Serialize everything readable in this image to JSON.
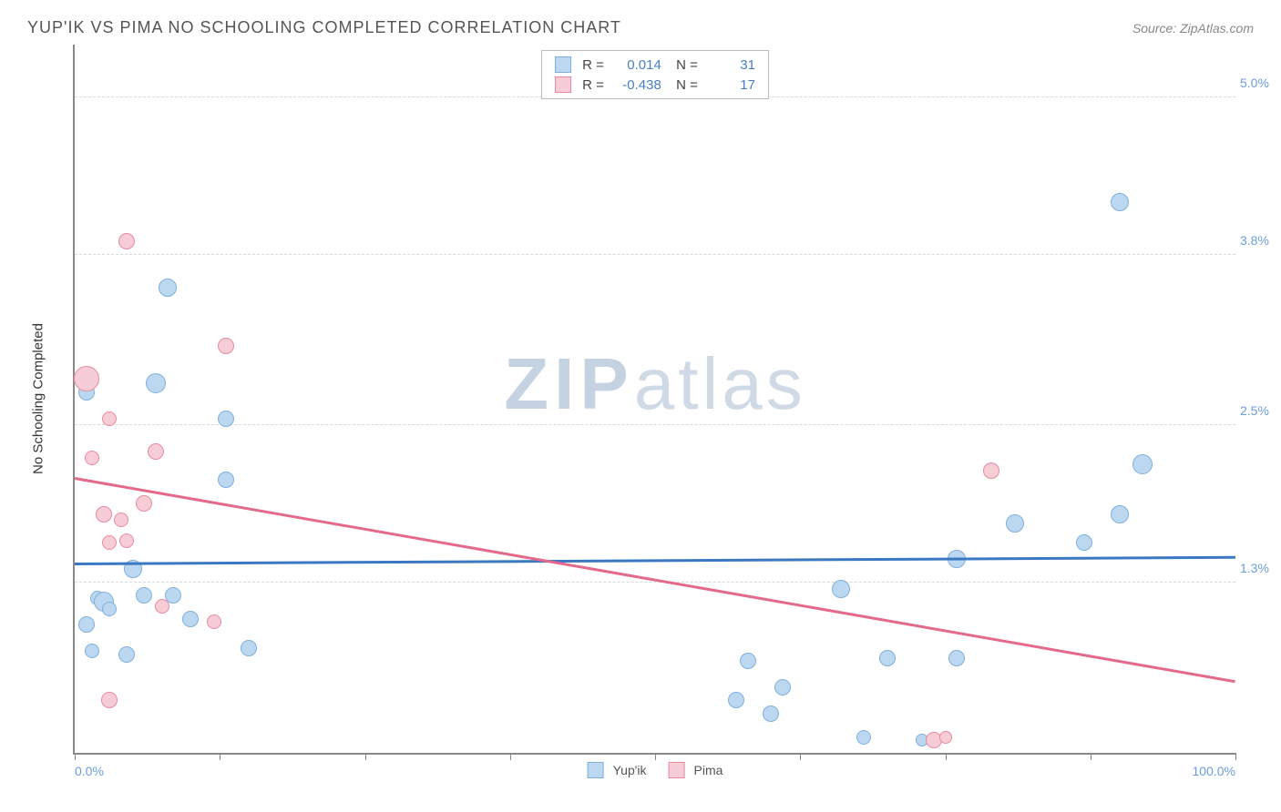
{
  "title": "YUP'IK VS PIMA NO SCHOOLING COMPLETED CORRELATION CHART",
  "source_label": "Source: ZipAtlas.com",
  "y_axis_title": "No Schooling Completed",
  "watermark": {
    "bold": "ZIP",
    "light": "atlas"
  },
  "chart": {
    "type": "scatter",
    "xlim": [
      0,
      100
    ],
    "ylim": [
      0,
      5.4
    ],
    "x_ticks": [
      0,
      12.5,
      25,
      37.5,
      50,
      62.5,
      75,
      87.5,
      100
    ],
    "x_tick_labels": {
      "0": "0.0%",
      "100": "100.0%"
    },
    "y_grid": [
      1.3,
      2.5,
      3.8,
      5.0
    ],
    "y_tick_labels": [
      "1.3%",
      "2.5%",
      "3.8%",
      "5.0%"
    ],
    "background_color": "#ffffff",
    "grid_color": "#d8d8d8",
    "axis_color": "#888888",
    "label_color": "#6a9ddc",
    "series": [
      {
        "name": "Yup'ik",
        "color_fill": "#bcd7f0",
        "color_stroke": "#7fb0dd",
        "trend_color": "#3a78c2",
        "R": "0.014",
        "N": "31",
        "trend": {
          "y_at_x0": 1.45,
          "y_at_x100": 1.5
        },
        "points": [
          {
            "x": 1,
            "y": 2.75,
            "r": 9
          },
          {
            "x": 8,
            "y": 3.55,
            "r": 10
          },
          {
            "x": 7,
            "y": 2.82,
            "r": 11
          },
          {
            "x": 13,
            "y": 2.55,
            "r": 9
          },
          {
            "x": 13,
            "y": 2.08,
            "r": 9
          },
          {
            "x": 5,
            "y": 1.4,
            "r": 10
          },
          {
            "x": 2,
            "y": 1.18,
            "r": 8
          },
          {
            "x": 2.5,
            "y": 1.15,
            "r": 11
          },
          {
            "x": 3,
            "y": 1.1,
            "r": 8
          },
          {
            "x": 6,
            "y": 1.2,
            "r": 9
          },
          {
            "x": 8.5,
            "y": 1.2,
            "r": 9
          },
          {
            "x": 10,
            "y": 1.02,
            "r": 9
          },
          {
            "x": 1,
            "y": 0.98,
            "r": 9
          },
          {
            "x": 1.5,
            "y": 0.78,
            "r": 8
          },
          {
            "x": 4.5,
            "y": 0.75,
            "r": 9
          },
          {
            "x": 15,
            "y": 0.8,
            "r": 9
          },
          {
            "x": 58,
            "y": 0.7,
            "r": 9
          },
          {
            "x": 57,
            "y": 0.4,
            "r": 9
          },
          {
            "x": 61,
            "y": 0.5,
            "r": 9
          },
          {
            "x": 60,
            "y": 0.3,
            "r": 9
          },
          {
            "x": 66,
            "y": 1.25,
            "r": 10
          },
          {
            "x": 70,
            "y": 0.72,
            "r": 9
          },
          {
            "x": 68,
            "y": 0.12,
            "r": 8
          },
          {
            "x": 76,
            "y": 0.72,
            "r": 9
          },
          {
            "x": 76,
            "y": 1.48,
            "r": 10
          },
          {
            "x": 81,
            "y": 1.75,
            "r": 10
          },
          {
            "x": 90,
            "y": 1.82,
            "r": 10
          },
          {
            "x": 87,
            "y": 1.6,
            "r": 9
          },
          {
            "x": 92,
            "y": 2.2,
            "r": 11
          },
          {
            "x": 90,
            "y": 4.2,
            "r": 10
          },
          {
            "x": 73,
            "y": 0.1,
            "r": 7
          }
        ]
      },
      {
        "name": "Pima",
        "color_fill": "#f6cdd6",
        "color_stroke": "#e88aa0",
        "trend_color": "#e46a8b",
        "R": "-0.438",
        "N": "17",
        "trend": {
          "y_at_x0": 2.1,
          "y_at_x100": 0.55
        },
        "points": [
          {
            "x": 4.5,
            "y": 3.9,
            "r": 9
          },
          {
            "x": 1,
            "y": 2.85,
            "r": 14
          },
          {
            "x": 13,
            "y": 3.1,
            "r": 9
          },
          {
            "x": 3,
            "y": 2.55,
            "r": 8
          },
          {
            "x": 7,
            "y": 2.3,
            "r": 9
          },
          {
            "x": 1.5,
            "y": 2.25,
            "r": 8
          },
          {
            "x": 6,
            "y": 1.9,
            "r": 9
          },
          {
            "x": 2.5,
            "y": 1.82,
            "r": 9
          },
          {
            "x": 4,
            "y": 1.78,
            "r": 8
          },
          {
            "x": 4.5,
            "y": 1.62,
            "r": 8
          },
          {
            "x": 3,
            "y": 1.6,
            "r": 8
          },
          {
            "x": 7.5,
            "y": 1.12,
            "r": 8
          },
          {
            "x": 12,
            "y": 1.0,
            "r": 8
          },
          {
            "x": 3,
            "y": 0.4,
            "r": 9
          },
          {
            "x": 79,
            "y": 2.15,
            "r": 9
          },
          {
            "x": 74,
            "y": 0.1,
            "r": 9
          },
          {
            "x": 75,
            "y": 0.12,
            "r": 7
          }
        ]
      }
    ]
  },
  "legend_bottom": [
    {
      "label": "Yup'ik",
      "fill": "#bcd7f0",
      "stroke": "#7fb0dd"
    },
    {
      "label": "Pima",
      "fill": "#f6cdd6",
      "stroke": "#e88aa0"
    }
  ]
}
